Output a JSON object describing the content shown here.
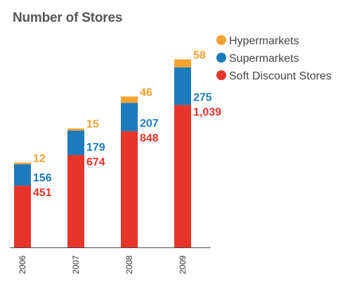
{
  "chart_data": {
    "type": "bar",
    "stacked": true,
    "title": "Number of Stores",
    "xlabel": "",
    "ylabel": "",
    "categories": [
      "2006",
      "2007",
      "2008",
      "2009"
    ],
    "series": [
      {
        "name": "Soft Discount Stores",
        "color": "#e8352b",
        "values": [
          451,
          674,
          848,
          1039
        ],
        "labels": [
          "451",
          "674",
          "848",
          "1,039"
        ]
      },
      {
        "name": "Supermarkets",
        "color": "#1b7bbd",
        "values": [
          156,
          179,
          207,
          275
        ],
        "labels": [
          "156",
          "179",
          "207",
          "275"
        ]
      },
      {
        "name": "Hypermarkets",
        "color": "#f5a231",
        "values": [
          12,
          15,
          46,
          58
        ],
        "labels": [
          "12",
          "15",
          "46",
          "58"
        ]
      }
    ],
    "legend": {
      "placement": "top-right",
      "order": [
        "Hypermarkets",
        "Supermarkets",
        "Soft Discount Stores"
      ]
    },
    "grid": false,
    "ylim": [
      0,
      1400
    ]
  }
}
